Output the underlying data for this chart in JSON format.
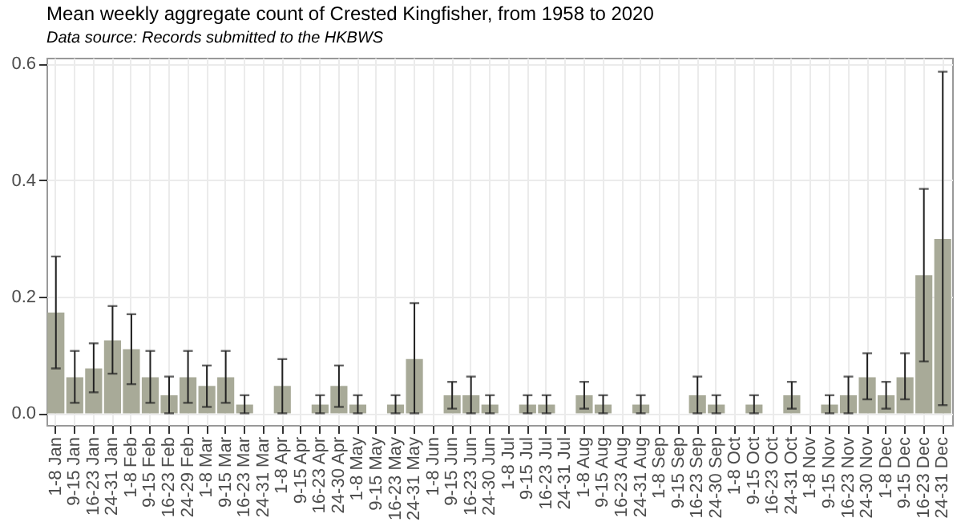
{
  "chart_data": {
    "type": "bar",
    "title": "Mean weekly aggregate count of Crested Kingfisher, from 1958 to 2020",
    "subtitle": "Data source: Records submitted to the HKBWS",
    "categories": [
      "1-8 Jan",
      "9-15 Jan",
      "16-23 Jan",
      "24-31 Jan",
      "1-8 Feb",
      "9-15 Feb",
      "16-23 Feb",
      "24-29 Feb",
      "1-8 Mar",
      "9-15 Mar",
      "16-23 Mar",
      "24-31 Mar",
      "1-8 Apr",
      "9-15 Apr",
      "16-23 Apr",
      "24-30 Apr",
      "1-8 May",
      "9-15 May",
      "16-23 May",
      "24-31 May",
      "1-8 Jun",
      "9-15 Jun",
      "16-23 Jun",
      "24-30 Jun",
      "1-8 Jul",
      "9-15 Jul",
      "16-23 Jul",
      "24-31 Jul",
      "1-8 Aug",
      "9-15 Aug",
      "16-23 Aug",
      "24-31 Aug",
      "1-8 Sep",
      "9-15 Sep",
      "16-23 Sep",
      "24-30 Sep",
      "1-8 Oct",
      "9-15 Oct",
      "16-23 Oct",
      "24-31 Oct",
      "1-8 Nov",
      "9-15 Nov",
      "16-23 Nov",
      "24-30 Nov",
      "1-8 Dec",
      "9-15 Dec",
      "16-23 Dec",
      "24-31 Dec"
    ],
    "values": [
      0.173,
      0.062,
      0.077,
      0.125,
      0.11,
      0.062,
      0.031,
      0.062,
      0.047,
      0.062,
      0.015,
      0,
      0.047,
      0,
      0.015,
      0.047,
      0.015,
      0,
      0.015,
      0.093,
      0,
      0.031,
      0.031,
      0.015,
      0,
      0.015,
      0.015,
      0,
      0.031,
      0.015,
      0,
      0.015,
      0,
      0,
      0.031,
      0.015,
      0,
      0.015,
      0,
      0.031,
      0,
      0.015,
      0.031,
      0.062,
      0.031,
      0.062,
      0.237,
      0.299
    ],
    "errors": [
      [
        0.077,
        0.269
      ],
      [
        0.018,
        0.107
      ],
      [
        0.036,
        0.12
      ],
      [
        0.068,
        0.184
      ],
      [
        0.05,
        0.17
      ],
      [
        0.018,
        0.107
      ],
      [
        0,
        0.063
      ],
      [
        0.018,
        0.107
      ],
      [
        0.011,
        0.082
      ],
      [
        0.018,
        0.107
      ],
      [
        0,
        0.031
      ],
      null,
      [
        0,
        0.093
      ],
      null,
      [
        0,
        0.031
      ],
      [
        0.011,
        0.082
      ],
      [
        0,
        0.031
      ],
      null,
      [
        0,
        0.031
      ],
      [
        0,
        0.189
      ],
      null,
      [
        0.008,
        0.054
      ],
      [
        0,
        0.063
      ],
      [
        0,
        0.031
      ],
      null,
      [
        0,
        0.031
      ],
      [
        0,
        0.031
      ],
      null,
      [
        0.008,
        0.054
      ],
      [
        0,
        0.031
      ],
      null,
      [
        0,
        0.031
      ],
      null,
      null,
      [
        0,
        0.063
      ],
      [
        0,
        0.031
      ],
      null,
      [
        0,
        0.031
      ],
      null,
      [
        0.008,
        0.054
      ],
      null,
      [
        0,
        0.031
      ],
      [
        0,
        0.063
      ],
      [
        0.024,
        0.103
      ],
      [
        0.008,
        0.054
      ],
      [
        0.024,
        0.103
      ],
      [
        0.089,
        0.385
      ],
      [
        0.014,
        0.586
      ]
    ],
    "color": "#a8aa98",
    "ylim": [
      -0.02,
      0.61
    ],
    "yticks": [
      {
        "value": 0,
        "label": "0.0"
      },
      0.2,
      0.4,
      0.6
    ],
    "grid": true
  }
}
